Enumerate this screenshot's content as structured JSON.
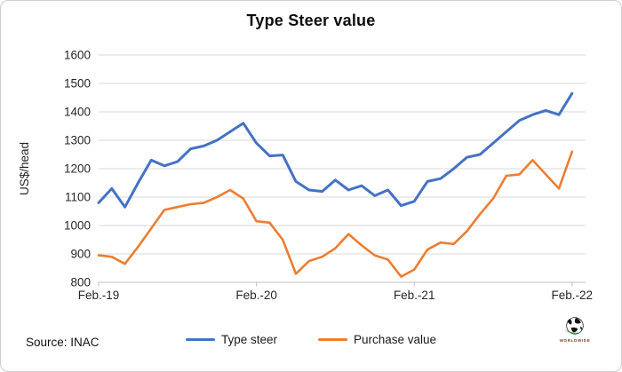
{
  "header": {
    "title": "Type Steer value"
  },
  "chart_data": {
    "type": "line",
    "title": "Type Steer value",
    "xlabel": "",
    "ylabel": "US$/head",
    "ylim": [
      800,
      1600
    ],
    "y_ticks": [
      800,
      900,
      1000,
      1100,
      1200,
      1300,
      1400,
      1500,
      1600
    ],
    "x_tick_labels": [
      "Feb.-19",
      "Feb.-20",
      "Feb.-21",
      "Feb.-22"
    ],
    "x_tick_month_index": [
      0,
      12,
      24,
      36
    ],
    "grid": true,
    "legend_position": "bottom",
    "grid_color": "#d9d9d9",
    "axis_color": "#bfbfbf",
    "tick_label_color": "#262626",
    "series": [
      {
        "name": "Type steer",
        "color": "#4472C4",
        "values": [
          1080,
          1130,
          1065,
          1150,
          1230,
          1210,
          1225,
          1270,
          1280,
          1300,
          1330,
          1360,
          1290,
          1245,
          1248,
          1155,
          1125,
          1120,
          1160,
          1125,
          1140,
          1105,
          1125,
          1070,
          1085,
          1155,
          1165,
          1200,
          1240,
          1250,
          1290,
          1330,
          1370,
          1390,
          1405,
          1390,
          1465
        ]
      },
      {
        "name": "Purchase value",
        "color": "#ED7D31",
        "values": [
          895,
          890,
          865,
          925,
          990,
          1055,
          1065,
          1075,
          1080,
          1100,
          1125,
          1095,
          1015,
          1010,
          950,
          830,
          875,
          890,
          920,
          970,
          930,
          895,
          880,
          820,
          845,
          915,
          940,
          935,
          980,
          1040,
          1095,
          1175,
          1180,
          1230,
          1180,
          1130,
          1260
        ]
      }
    ]
  },
  "footer": {
    "source": "Source: INAC",
    "logo_text": "WORLDWIDE"
  }
}
